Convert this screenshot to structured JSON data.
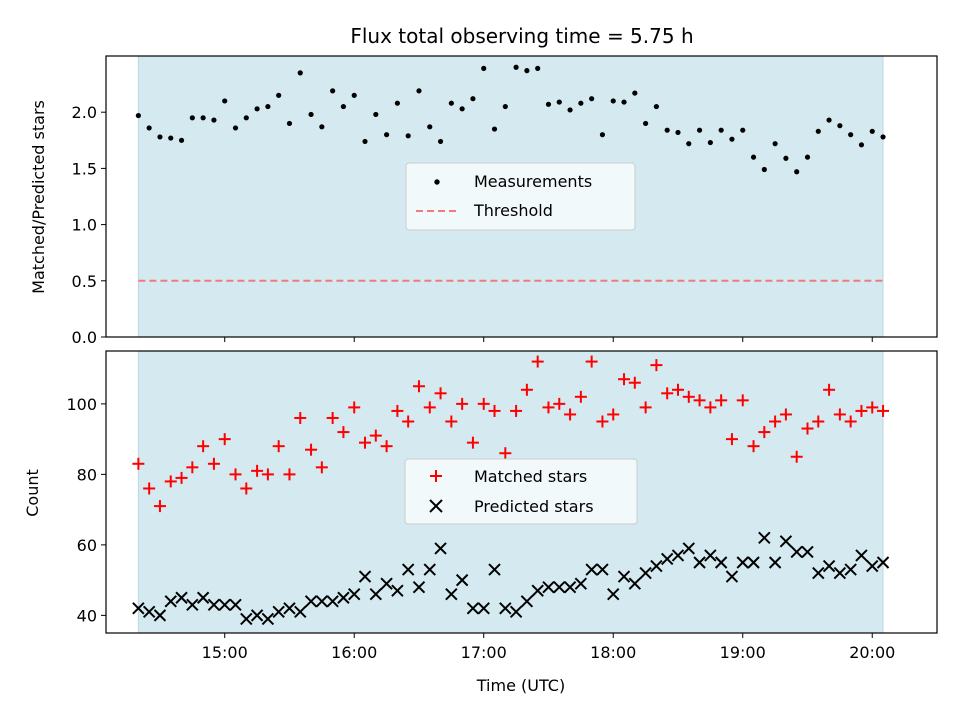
{
  "chart_data": [
    {
      "type": "scatter",
      "title": "Flux total observing time = 5.75 h",
      "xlabel": "",
      "ylabel": "Matched/Predicted stars",
      "ylim": [
        0,
        2.5
      ],
      "y_ticks": [
        "0.0",
        "0.5",
        "1.0",
        "1.5",
        "2.0"
      ],
      "y_tick_values": [
        0,
        0.5,
        1.0,
        1.5,
        2.0
      ],
      "x_tick_values": [
        "15:00",
        "16:00",
        "17:00",
        "18:00",
        "19:00",
        "20:00"
      ],
      "shaded_span": [
        "14:20",
        "20:05"
      ],
      "shade_color": "#d4eaf0",
      "legend": {
        "placement": "center",
        "entries": [
          "Measurements",
          "Threshold"
        ]
      },
      "threshold": {
        "name": "Threshold",
        "value": 0.5,
        "color": "#ef7b7b"
      },
      "series": [
        {
          "name": "Measurements",
          "color": "#000000",
          "x": [
            "14:20",
            "14:25",
            "14:30",
            "14:35",
            "14:40",
            "14:45",
            "14:50",
            "14:55",
            "15:00",
            "15:05",
            "15:10",
            "15:15",
            "15:20",
            "15:25",
            "15:30",
            "15:35",
            "15:40",
            "15:45",
            "15:50",
            "15:55",
            "16:00",
            "16:05",
            "16:10",
            "16:15",
            "16:20",
            "16:25",
            "16:30",
            "16:35",
            "16:40",
            "16:45",
            "16:50",
            "16:55",
            "17:00",
            "17:05",
            "17:10",
            "17:15",
            "17:20",
            "17:25",
            "17:30",
            "17:35",
            "17:40",
            "17:45",
            "17:50",
            "17:55",
            "18:00",
            "18:05",
            "18:10",
            "18:15",
            "18:20",
            "18:25",
            "18:30",
            "18:35",
            "18:40",
            "18:45",
            "18:50",
            "18:55",
            "19:00",
            "19:05",
            "19:10",
            "19:15",
            "19:20",
            "19:25",
            "19:30",
            "19:35",
            "19:40",
            "19:45",
            "19:50",
            "19:55",
            "20:00",
            "20:05"
          ],
          "y": [
            1.97,
            1.86,
            1.78,
            1.77,
            1.75,
            1.95,
            1.95,
            1.93,
            2.1,
            1.86,
            1.95,
            2.03,
            2.05,
            2.15,
            1.9,
            2.35,
            1.98,
            1.87,
            2.19,
            2.05,
            2.15,
            1.74,
            1.98,
            1.8,
            2.08,
            1.79,
            2.19,
            1.87,
            1.74,
            2.08,
            2.03,
            2.12,
            2.39,
            1.85,
            2.05,
            2.4,
            2.37,
            2.39,
            2.07,
            2.09,
            2.02,
            2.08,
            2.12,
            1.8,
            2.1,
            2.09,
            2.17,
            1.9,
            2.05,
            1.84,
            1.82,
            1.72,
            1.84,
            1.73,
            1.84,
            1.76,
            1.84,
            1.6,
            1.49,
            1.72,
            1.59,
            1.47,
            1.6,
            1.83,
            1.93,
            1.88,
            1.8,
            1.71,
            1.83,
            1.78
          ]
        }
      ]
    },
    {
      "type": "scatter",
      "title": "",
      "xlabel": "Time (UTC)",
      "ylabel": "Count",
      "ylim": [
        35,
        115
      ],
      "y_ticks": [
        "40",
        "60",
        "80",
        "100"
      ],
      "y_tick_values": [
        40,
        60,
        80,
        100
      ],
      "x_ticks": [
        "15:00",
        "16:00",
        "17:00",
        "18:00",
        "19:00",
        "20:00"
      ],
      "shaded_span": [
        "14:20",
        "20:05"
      ],
      "shade_color": "#d4eaf0",
      "legend": {
        "placement": "center",
        "entries": [
          "Matched stars",
          "Predicted stars"
        ]
      },
      "series": [
        {
          "name": "Matched stars",
          "marker": "plus",
          "color": "#ff0000",
          "x": [
            "14:20",
            "14:25",
            "14:30",
            "14:35",
            "14:40",
            "14:45",
            "14:50",
            "14:55",
            "15:00",
            "15:05",
            "15:10",
            "15:15",
            "15:20",
            "15:25",
            "15:30",
            "15:35",
            "15:40",
            "15:45",
            "15:50",
            "15:55",
            "16:00",
            "16:05",
            "16:10",
            "16:15",
            "16:20",
            "16:25",
            "16:30",
            "16:35",
            "16:40",
            "16:45",
            "16:50",
            "16:55",
            "17:00",
            "17:05",
            "17:10",
            "17:15",
            "17:20",
            "17:25",
            "17:30",
            "17:35",
            "17:40",
            "17:45",
            "17:50",
            "17:55",
            "18:00",
            "18:05",
            "18:10",
            "18:15",
            "18:20",
            "18:25",
            "18:30",
            "18:35",
            "18:40",
            "18:45",
            "18:50",
            "18:55",
            "19:00",
            "19:05",
            "19:10",
            "19:15",
            "19:20",
            "19:25",
            "19:30",
            "19:35",
            "19:40",
            "19:45",
            "19:50",
            "19:55",
            "20:00",
            "20:05"
          ],
          "y": [
            83,
            76,
            71,
            78,
            79,
            82,
            88,
            83,
            90,
            80,
            76,
            81,
            80,
            88,
            80,
            96,
            87,
            82,
            96,
            92,
            99,
            89,
            91,
            88,
            98,
            95,
            105,
            99,
            103,
            95,
            100,
            89,
            100,
            98,
            86,
            98,
            104,
            112,
            99,
            100,
            97,
            102,
            112,
            95,
            97,
            107,
            106,
            99,
            111,
            103,
            104,
            102,
            101,
            99,
            101,
            90,
            101,
            88,
            92,
            95,
            97,
            85,
            93,
            95,
            104,
            97,
            95,
            98,
            99,
            98
          ]
        },
        {
          "name": "Predicted stars",
          "marker": "x",
          "color": "#000000",
          "x": [
            "14:20",
            "14:25",
            "14:30",
            "14:35",
            "14:40",
            "14:45",
            "14:50",
            "14:55",
            "15:00",
            "15:05",
            "15:10",
            "15:15",
            "15:20",
            "15:25",
            "15:30",
            "15:35",
            "15:40",
            "15:45",
            "15:50",
            "15:55",
            "16:00",
            "16:05",
            "16:10",
            "16:15",
            "16:20",
            "16:25",
            "16:30",
            "16:35",
            "16:40",
            "16:45",
            "16:50",
            "16:55",
            "17:00",
            "17:05",
            "17:10",
            "17:15",
            "17:20",
            "17:25",
            "17:30",
            "17:35",
            "17:40",
            "17:45",
            "17:50",
            "17:55",
            "18:00",
            "18:05",
            "18:10",
            "18:15",
            "18:20",
            "18:25",
            "18:30",
            "18:35",
            "18:40",
            "18:45",
            "18:50",
            "18:55",
            "19:00",
            "19:05",
            "19:10",
            "19:15",
            "19:20",
            "19:25",
            "19:30",
            "19:35",
            "19:40",
            "19:45",
            "19:50",
            "19:55",
            "20:00",
            "20:05"
          ],
          "y": [
            42,
            41,
            40,
            44,
            45,
            43,
            45,
            43,
            43,
            43,
            39,
            40,
            39,
            41,
            42,
            41,
            44,
            44,
            44,
            45,
            46,
            51,
            46,
            49,
            47,
            53,
            48,
            53,
            59,
            46,
            50,
            42,
            42,
            53,
            42,
            41,
            44,
            47,
            48,
            48,
            48,
            49,
            53,
            53,
            46,
            51,
            49,
            52,
            54,
            56,
            57,
            59,
            55,
            57,
            55,
            51,
            55,
            55,
            62,
            55,
            61,
            58,
            58,
            52,
            54,
            52,
            53,
            57,
            54,
            55
          ]
        }
      ]
    }
  ]
}
